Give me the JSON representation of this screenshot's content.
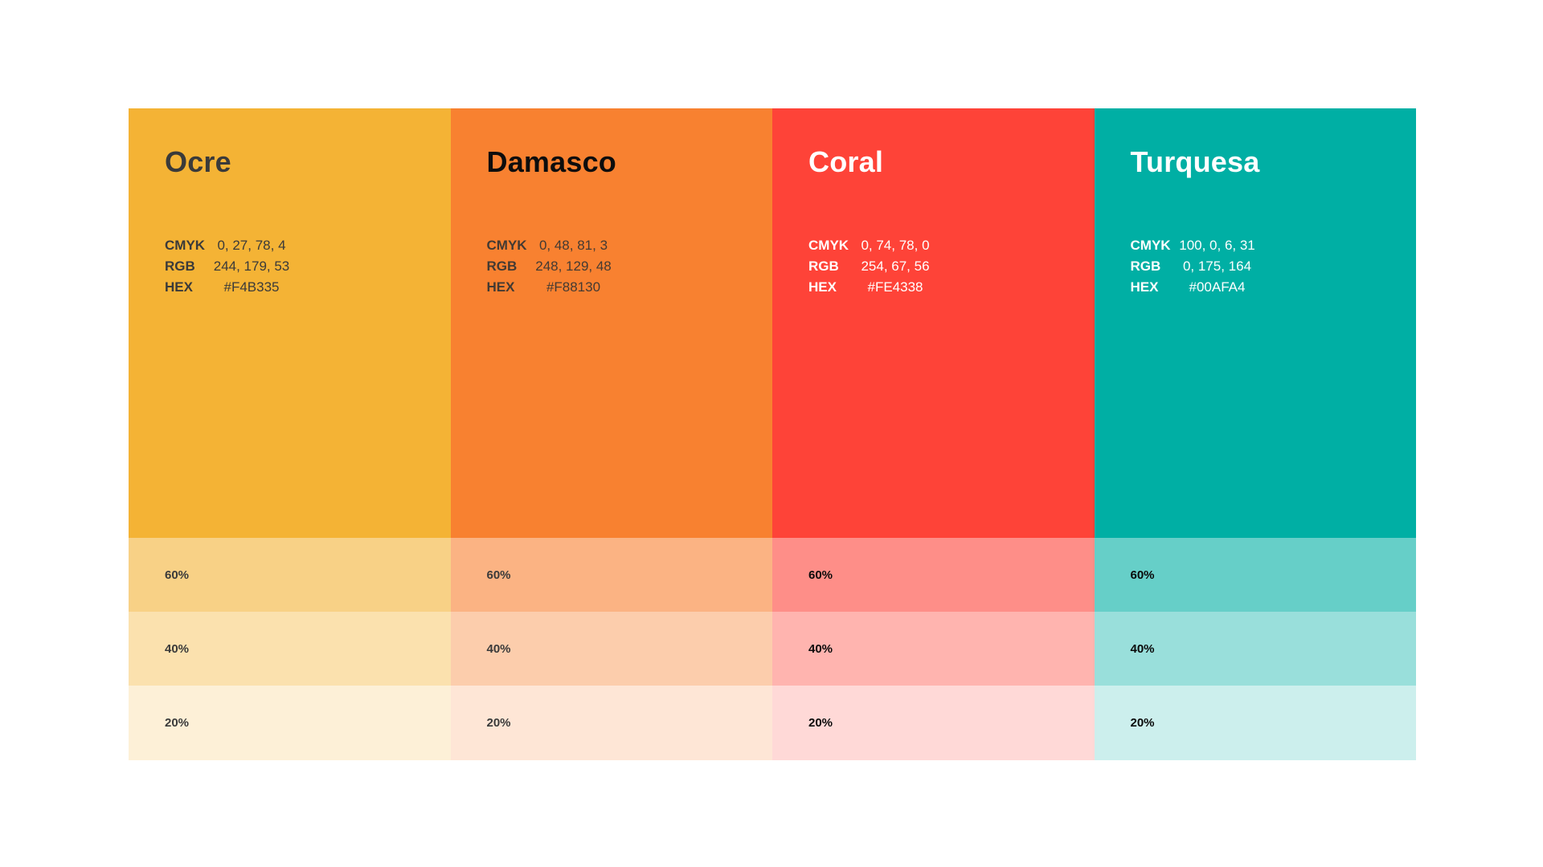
{
  "palette": {
    "spec_labels": {
      "cmyk": "CMYK",
      "rgb": "RGB",
      "hex": "HEX"
    },
    "tints": [
      {
        "label": "60%",
        "opacity": 0.6
      },
      {
        "label": "40%",
        "opacity": 0.4
      },
      {
        "label": "20%",
        "opacity": 0.2
      }
    ],
    "colors": [
      {
        "name": "Ocre",
        "cmyk": "0, 27, 78, 4",
        "rgb": "244, 179, 53",
        "hex": "#F4B335",
        "title_color": "#3A3A3A",
        "info_color": "#3A3A3A",
        "tint_label_color": "#3A3A3A"
      },
      {
        "name": "Damasco",
        "cmyk": "0, 48, 81, 3",
        "rgb": "248, 129, 48",
        "hex": "#F88130",
        "title_color": "#0D0D0D",
        "info_color": "#433A33",
        "tint_label_color": "#3A3A3A"
      },
      {
        "name": "Coral",
        "cmyk": "0, 74, 78, 0",
        "rgb": "254, 67, 56",
        "hex": "#FE4338",
        "title_color": "#FFFFFF",
        "info_color": "#FFFFFF",
        "tint_label_color": "#0A0A0A"
      },
      {
        "name": "Turquesa",
        "cmyk": "100, 0, 6, 31",
        "rgb": "0, 175, 164",
        "hex": "#00AFA4",
        "title_color": "#FFFFFF",
        "info_color": "#FFFFFF",
        "tint_label_color": "#0A0A0A"
      }
    ]
  }
}
